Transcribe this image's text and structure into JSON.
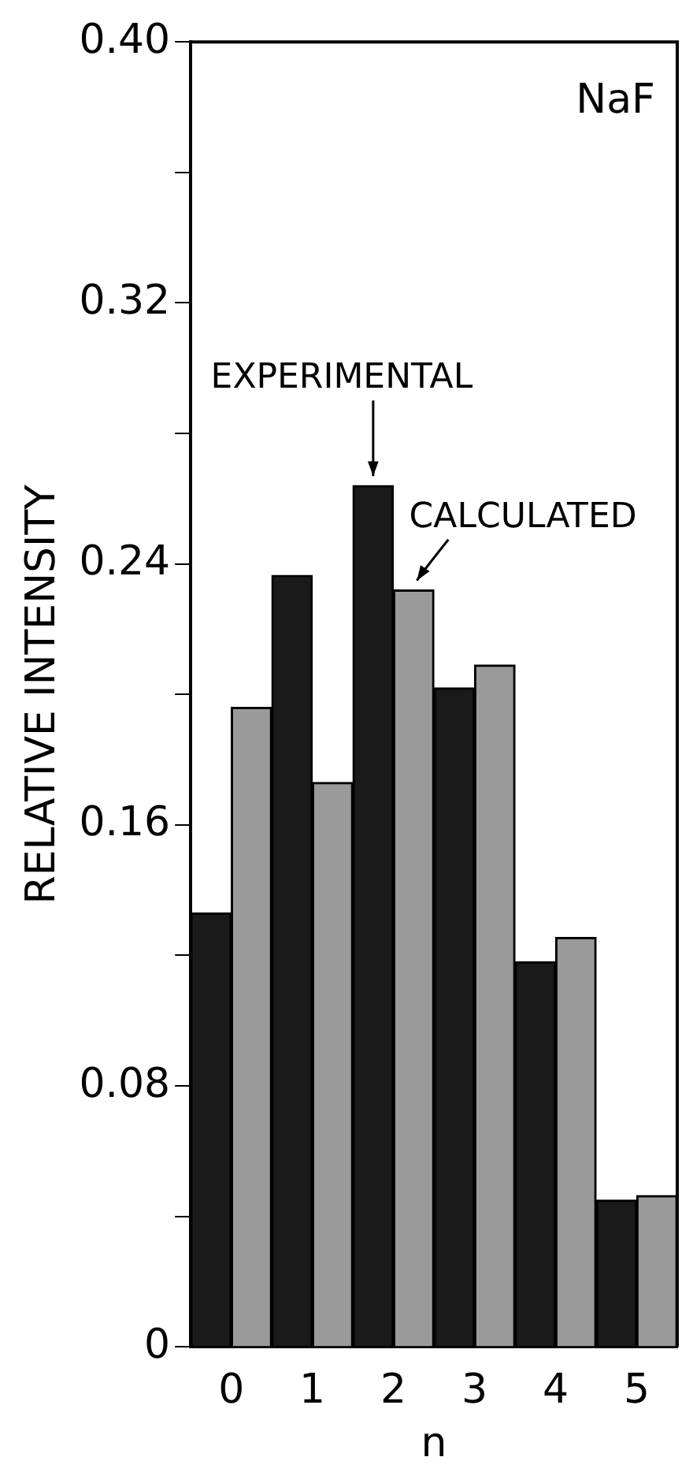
{
  "chart_data": {
    "type": "bar",
    "xlabel": "n",
    "ylabel": "RELATIVE INTENSITY",
    "annotations": [
      "NaF"
    ],
    "categories": [
      "0",
      "1",
      "2",
      "3",
      "4",
      "5"
    ],
    "series": [
      {
        "name": "EXPERIMENTAL",
        "color": "#1a1a1a",
        "values": [
          0.133,
          0.2365,
          0.264,
          0.202,
          0.118,
          0.045
        ]
      },
      {
        "name": "CALCULATED",
        "color": "#9a9a9a",
        "values": [
          0.196,
          0.173,
          0.232,
          0.209,
          0.1255,
          0.0464
        ]
      }
    ],
    "ylim": [
      0,
      0.4
    ],
    "yticks": [
      0,
      {
        "value": 0.04,
        "label": null
      },
      0.08,
      {
        "value": 0.12,
        "label": null
      },
      0.16,
      {
        "value": 0.2,
        "label": null
      },
      0.24,
      {
        "value": 0.28,
        "label": null
      },
      0.32,
      {
        "value": 0.36,
        "label": null
      },
      {
        "value": 0.4,
        "label": "0.40"
      }
    ],
    "grid": false,
    "legend": false
  }
}
